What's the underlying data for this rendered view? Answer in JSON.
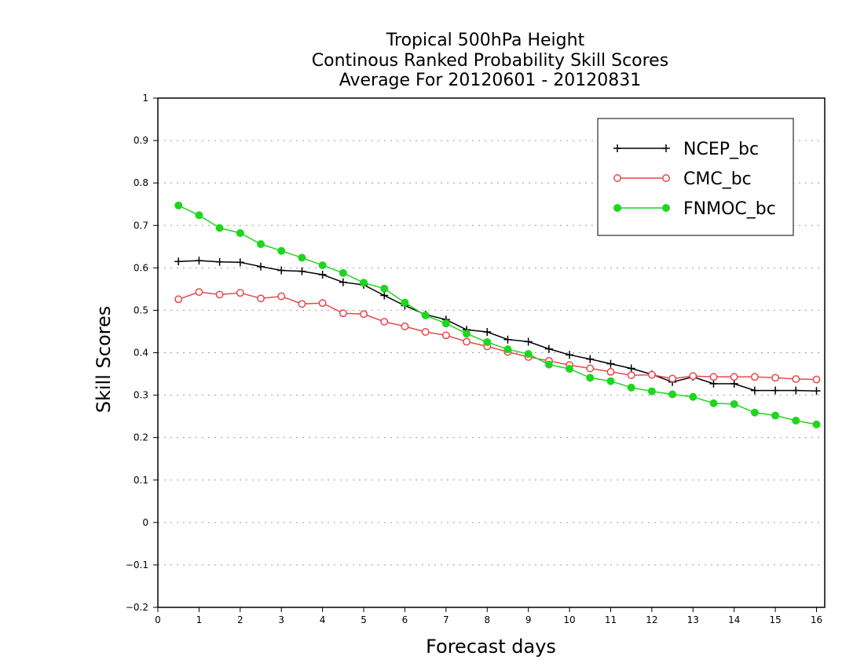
{
  "chart_data": {
    "type": "line",
    "title_lines": [
      "Tropical 500hPa Height",
      "Continous Ranked Probability Skill Scores",
      "Average For 20120601 - 20120831"
    ],
    "xlabel": "Forecast days",
    "ylabel": "Skill Scores",
    "xlim": [
      0,
      16.2
    ],
    "ylim": [
      -0.2,
      1
    ],
    "xticks": [
      0,
      1,
      2,
      3,
      4,
      5,
      6,
      7,
      8,
      9,
      10,
      11,
      12,
      13,
      14,
      15,
      16
    ],
    "xtick_labels": [
      "0",
      "1",
      "2",
      "3",
      "4",
      "5",
      "6",
      "7",
      "8",
      "9",
      "10",
      "11",
      "12",
      "13",
      "14",
      "15",
      "16"
    ],
    "yticks": [
      -0.2,
      -0.1,
      0,
      0.1,
      0.2,
      0.3,
      0.4,
      0.5,
      0.6,
      0.7,
      0.8,
      0.9,
      1
    ],
    "ytick_labels": [
      "−0.2",
      "−0.1",
      "0",
      "0.1",
      "0.2",
      "0.3",
      "0.4",
      "0.5",
      "0.6",
      "0.7",
      "0.8",
      "0.9",
      "1"
    ],
    "grid": "horizontal dotted",
    "legend_position": "top-right",
    "x": [
      0.5,
      1.0,
      1.5,
      2.0,
      2.5,
      3.0,
      3.5,
      4.0,
      4.5,
      5.0,
      5.5,
      6.0,
      6.5,
      7.0,
      7.5,
      8.0,
      8.5,
      9.0,
      9.5,
      10.0,
      10.5,
      11.0,
      11.5,
      12.0,
      12.5,
      13.0,
      13.5,
      14.0,
      14.5,
      15.0,
      15.5,
      16.0
    ],
    "series": [
      {
        "name": "NCEP_bc",
        "color": "#000000",
        "marker": "plus",
        "values": [
          0.615,
          0.617,
          0.614,
          0.613,
          0.603,
          0.594,
          0.592,
          0.584,
          0.566,
          0.56,
          0.535,
          0.511,
          0.49,
          0.478,
          0.454,
          0.449,
          0.431,
          0.426,
          0.409,
          0.395,
          0.385,
          0.374,
          0.363,
          0.349,
          0.331,
          0.343,
          0.327,
          0.327,
          0.311,
          0.311,
          0.311,
          0.31
        ]
      },
      {
        "name": "CMC_bc",
        "color": "#e8474a",
        "marker": "open-circle",
        "values": [
          0.526,
          0.543,
          0.537,
          0.541,
          0.528,
          0.533,
          0.515,
          0.517,
          0.493,
          0.491,
          0.473,
          0.462,
          0.449,
          0.441,
          0.426,
          0.415,
          0.402,
          0.39,
          0.381,
          0.371,
          0.363,
          0.355,
          0.347,
          0.348,
          0.339,
          0.345,
          0.343,
          0.343,
          0.343,
          0.341,
          0.338,
          0.337
        ]
      },
      {
        "name": "FNMOC_bc",
        "color": "#1fd61f",
        "marker": "filled-circle",
        "values": [
          0.747,
          0.724,
          0.694,
          0.682,
          0.656,
          0.64,
          0.624,
          0.606,
          0.588,
          0.565,
          0.551,
          0.518,
          0.488,
          0.469,
          0.445,
          0.425,
          0.408,
          0.397,
          0.372,
          0.362,
          0.341,
          0.333,
          0.318,
          0.309,
          0.302,
          0.296,
          0.281,
          0.279,
          0.259,
          0.252,
          0.24,
          0.231
        ]
      }
    ]
  }
}
